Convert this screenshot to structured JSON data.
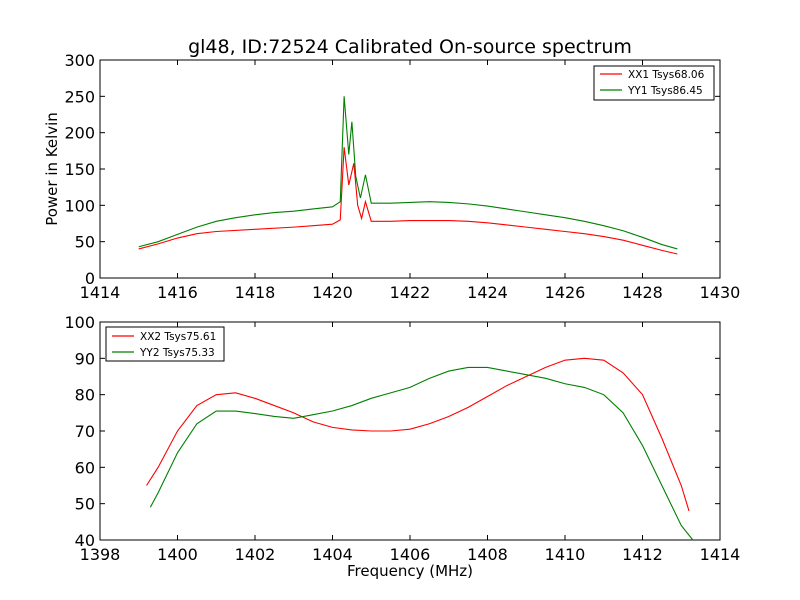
{
  "chart_data": [
    {
      "type": "line",
      "title": "gl48, ID:72524 Calibrated On-source spectrum",
      "xlabel": "",
      "ylabel": "Power in Kelvin",
      "xlim": [
        1414,
        1430
      ],
      "ylim": [
        0,
        300
      ],
      "xticks": [
        1414,
        1416,
        1418,
        1420,
        1422,
        1424,
        1426,
        1428,
        1430
      ],
      "yticks": [
        0,
        50,
        100,
        150,
        200,
        250,
        300
      ],
      "legend_position": "top-right",
      "series": [
        {
          "name": "XX1 Tsys68.06",
          "color": "#ff0000",
          "points": [
            [
              1415,
              40
            ],
            [
              1415.5,
              47
            ],
            [
              1416,
              55
            ],
            [
              1416.5,
              61
            ],
            [
              1417,
              64
            ],
            [
              1418,
              67
            ],
            [
              1419,
              70
            ],
            [
              1419.5,
              72
            ],
            [
              1420,
              74
            ],
            [
              1420.2,
              80
            ],
            [
              1420.3,
              180
            ],
            [
              1420.42,
              128
            ],
            [
              1420.55,
              158
            ],
            [
              1420.65,
              100
            ],
            [
              1420.75,
              82
            ],
            [
              1420.85,
              105
            ],
            [
              1421,
              78
            ],
            [
              1421.5,
              78
            ],
            [
              1422,
              79
            ],
            [
              1422.5,
              79
            ],
            [
              1423,
              79
            ],
            [
              1423.5,
              78
            ],
            [
              1424,
              76
            ],
            [
              1424.5,
              73
            ],
            [
              1425,
              70
            ],
            [
              1425.5,
              67
            ],
            [
              1426,
              64
            ],
            [
              1426.5,
              61
            ],
            [
              1427,
              57
            ],
            [
              1427.5,
              52
            ],
            [
              1428,
              45
            ],
            [
              1428.5,
              38
            ],
            [
              1428.9,
              33
            ]
          ]
        },
        {
          "name": "YY1 Tsys86.45",
          "color": "#008000",
          "points": [
            [
              1415,
              43
            ],
            [
              1415.5,
              50
            ],
            [
              1416,
              60
            ],
            [
              1416.5,
              70
            ],
            [
              1417,
              78
            ],
            [
              1417.5,
              83
            ],
            [
              1418,
              87
            ],
            [
              1418.5,
              90
            ],
            [
              1419,
              92
            ],
            [
              1419.5,
              95
            ],
            [
              1420,
              98
            ],
            [
              1420.2,
              105
            ],
            [
              1420.3,
              250
            ],
            [
              1420.42,
              170
            ],
            [
              1420.5,
              215
            ],
            [
              1420.6,
              140
            ],
            [
              1420.72,
              110
            ],
            [
              1420.85,
              142
            ],
            [
              1421,
              103
            ],
            [
              1421.5,
              103
            ],
            [
              1422,
              104
            ],
            [
              1422.5,
              105
            ],
            [
              1423,
              104
            ],
            [
              1423.5,
              102
            ],
            [
              1424,
              99
            ],
            [
              1424.5,
              95
            ],
            [
              1425,
              91
            ],
            [
              1425.5,
              87
            ],
            [
              1426,
              83
            ],
            [
              1426.5,
              78
            ],
            [
              1427,
              72
            ],
            [
              1427.5,
              65
            ],
            [
              1428,
              56
            ],
            [
              1428.5,
              46
            ],
            [
              1428.9,
              40
            ]
          ]
        }
      ]
    },
    {
      "type": "line",
      "title": "",
      "xlabel": "Frequency (MHz)",
      "ylabel": "",
      "xlim": [
        1398,
        1414
      ],
      "ylim": [
        40,
        100
      ],
      "xticks": [
        1398,
        1400,
        1402,
        1404,
        1406,
        1408,
        1410,
        1412,
        1414
      ],
      "yticks": [
        40,
        50,
        60,
        70,
        80,
        90,
        100
      ],
      "legend_position": "top-left",
      "series": [
        {
          "name": "XX2 Tsys75.61",
          "color": "#ff0000",
          "points": [
            [
              1399.2,
              55
            ],
            [
              1399.5,
              60
            ],
            [
              1400,
              70
            ],
            [
              1400.5,
              77
            ],
            [
              1401,
              80
            ],
            [
              1401.5,
              80.5
            ],
            [
              1402,
              79
            ],
            [
              1402.5,
              77
            ],
            [
              1403,
              75
            ],
            [
              1403.5,
              72.5
            ],
            [
              1404,
              71
            ],
            [
              1404.5,
              70.3
            ],
            [
              1405,
              70
            ],
            [
              1405.5,
              70
            ],
            [
              1406,
              70.5
            ],
            [
              1406.5,
              72
            ],
            [
              1407,
              74
            ],
            [
              1407.5,
              76.5
            ],
            [
              1408,
              79.5
            ],
            [
              1408.5,
              82.5
            ],
            [
              1409,
              85
            ],
            [
              1409.5,
              87.5
            ],
            [
              1410,
              89.5
            ],
            [
              1410.5,
              90
            ],
            [
              1411,
              89.5
            ],
            [
              1411.5,
              86
            ],
            [
              1412,
              80
            ],
            [
              1412.5,
              68
            ],
            [
              1413,
              55
            ],
            [
              1413.2,
              48
            ]
          ]
        },
        {
          "name": "YY2 Tsys75.33",
          "color": "#008000",
          "points": [
            [
              1399.3,
              49
            ],
            [
              1399.5,
              53
            ],
            [
              1400,
              64
            ],
            [
              1400.5,
              72
            ],
            [
              1401,
              75.5
            ],
            [
              1401.5,
              75.5
            ],
            [
              1402,
              74.8
            ],
            [
              1402.5,
              74
            ],
            [
              1403,
              73.5
            ],
            [
              1403.5,
              74.5
            ],
            [
              1404,
              75.5
            ],
            [
              1404.5,
              77
            ],
            [
              1405,
              79
            ],
            [
              1405.5,
              80.5
            ],
            [
              1406,
              82
            ],
            [
              1406.5,
              84.5
            ],
            [
              1407,
              86.5
            ],
            [
              1407.5,
              87.5
            ],
            [
              1408,
              87.5
            ],
            [
              1408.5,
              86.5
            ],
            [
              1409,
              85.5
            ],
            [
              1409.5,
              84.5
            ],
            [
              1410,
              83
            ],
            [
              1410.5,
              82
            ],
            [
              1411,
              80
            ],
            [
              1411.5,
              75
            ],
            [
              1412,
              66
            ],
            [
              1412.5,
              55
            ],
            [
              1413,
              44
            ],
            [
              1413.3,
              40
            ]
          ]
        }
      ]
    }
  ]
}
